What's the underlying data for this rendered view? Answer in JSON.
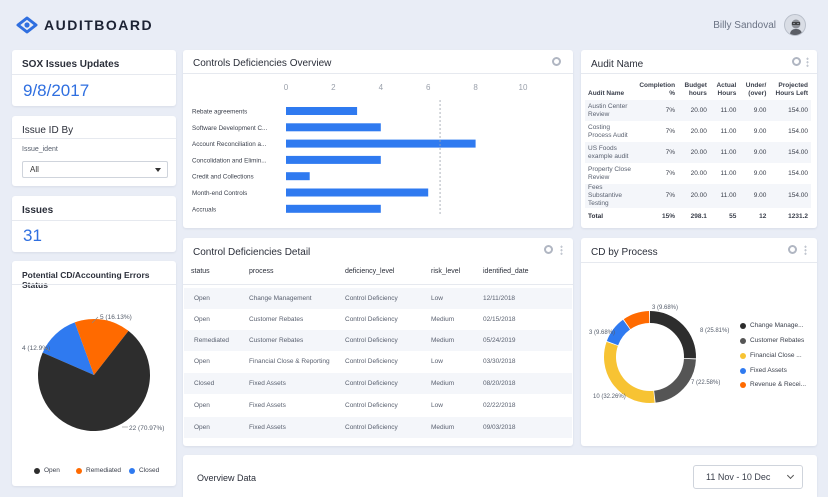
{
  "app": {
    "logo_text": "AUDITBOARD",
    "user_name": "Billy Sandoval"
  },
  "colors": {
    "accent": "#2f6fe0",
    "bar": "#2f7af0",
    "open": "#2d2d2d",
    "remediated": "#ff6a00",
    "closed": "#2f7af0",
    "yellow": "#f7c333",
    "gray": "#555555"
  },
  "sox": {
    "title": "SOX Issues Updates",
    "value": "9/8/2017"
  },
  "issue_id": {
    "title": "Issue ID By",
    "field_label": "Issue_ident",
    "selected": "All"
  },
  "issues": {
    "title": "Issues",
    "value": "31"
  },
  "potential": {
    "title": "Potential CD/Accounting Errors Status",
    "labels": [
      "5 (16.13%)",
      "4 (12.9%)",
      "22 (70.97%)"
    ],
    "legend": [
      "Open",
      "Remediated",
      "Closed"
    ]
  },
  "controls": {
    "title": "Controls Deficiencies Overview"
  },
  "audit": {
    "title": "Audit Name",
    "headers": [
      "Audit Name",
      "Completion %",
      "Budget hours",
      "Actual Hours",
      "Under/ (over)",
      "Projected Hours Left"
    ],
    "rows": [
      [
        "Austin Center Review",
        "7%",
        "20.00",
        "11.00",
        "9.00",
        "154.00"
      ],
      [
        "Costing Process Audit",
        "7%",
        "20.00",
        "11.00",
        "9.00",
        "154.00"
      ],
      [
        "US Foods example audit",
        "7%",
        "20.00",
        "11.00",
        "9.00",
        "154.00"
      ],
      [
        "Property Close Review",
        "7%",
        "20.00",
        "11.00",
        "9.00",
        "154.00"
      ],
      [
        "Fees Substantive Testing",
        "7%",
        "20.00",
        "11.00",
        "9.00",
        "154.00"
      ]
    ],
    "total": [
      "Total",
      "15%",
      "298.1",
      "55",
      "12",
      "1231.2"
    ]
  },
  "detail": {
    "title": "Control Deficiencies Detail",
    "headers": [
      "status",
      "process",
      "deficiency_level",
      "risk_level",
      "identified_date"
    ],
    "rows": [
      [
        "Open",
        "Change Management",
        "Control Deficiency",
        "Low",
        "12/11/2018"
      ],
      [
        "Open",
        "Customer Rebates",
        "Control Deficiency",
        "Medium",
        "02/15/2018"
      ],
      [
        "Remediated",
        "Customer Rebates",
        "Control Deficiency",
        "Medium",
        "05/24/2019"
      ],
      [
        "Open",
        "Financial Close & Reporting",
        "Control Deficiency",
        "Low",
        "03/30/2018"
      ],
      [
        "Closed",
        "Fixed Assets",
        "Control Deficiency",
        "Medium",
        "08/20/2018"
      ],
      [
        "Open",
        "Fixed Assets",
        "Control Deficiency",
        "Low",
        "02/22/2018"
      ],
      [
        "Open",
        "Fixed Assets",
        "Control Deficiency",
        "Medium",
        "09/03/2018"
      ]
    ]
  },
  "cd_process": {
    "title": "CD by Process",
    "labels": [
      "3 (9.68%)",
      "8 (25.81%)",
      "3 (9.68%)",
      "7 (22.58%)",
      "10 (32.26%)"
    ],
    "legend": [
      "Change Manage...",
      "Customer Rebates",
      "Financial Close ...",
      "Fixed Assets",
      "Revenue & Recei..."
    ]
  },
  "overview": {
    "title": "Overview Data",
    "date_range": "11 Nov - 10 Dec"
  },
  "chart_data": [
    {
      "type": "bar",
      "title": "Controls Deficiencies Overview",
      "categories": [
        "Rebate agreements",
        "Software Development C...",
        "Account Reconciliation a...",
        "Concolidation and Elimin...",
        "Credit and Collections",
        "Month-end Controls",
        "Accruals"
      ],
      "values": [
        3,
        4,
        8,
        4,
        1,
        6,
        4
      ],
      "xticks": [
        "0",
        "2",
        "4",
        "6",
        "8",
        "10"
      ],
      "xlim": [
        0,
        10
      ],
      "reference_line": 6.5
    },
    {
      "type": "pie",
      "title": "Potential CD/Accounting Errors Status",
      "series": [
        {
          "name": "Open",
          "value": 22
        },
        {
          "name": "Remediated",
          "value": 5
        },
        {
          "name": "Closed",
          "value": 4
        }
      ]
    },
    {
      "type": "pie",
      "title": "CD by Process",
      "series": [
        {
          "name": "Change Manage...",
          "value": 8
        },
        {
          "name": "Customer Rebates",
          "value": 7
        },
        {
          "name": "Financial Close ...",
          "value": 10
        },
        {
          "name": "Fixed Assets",
          "value": 3
        },
        {
          "name": "Revenue & Recei...",
          "value": 3
        }
      ]
    }
  ]
}
